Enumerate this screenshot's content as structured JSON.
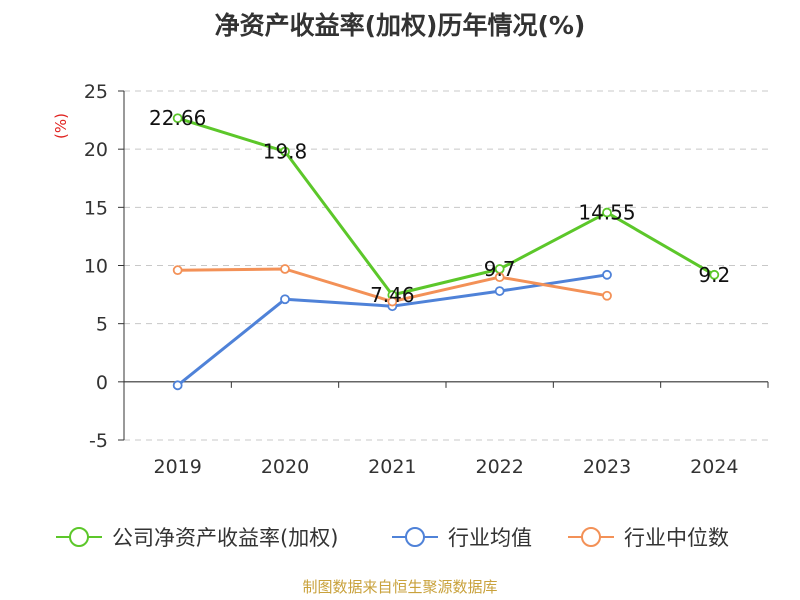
{
  "title": "净资产收益率(加权)历年情况(%)",
  "source": "制图数据来自恒生聚源数据库",
  "chart_data": {
    "type": "line",
    "title": "净资产收益率(加权)历年情况(%)",
    "unit": "(%)",
    "unit_color": "#e0221f",
    "categories": [
      "2019",
      "2020",
      "2021",
      "2022",
      "2023",
      "2024"
    ],
    "ylim": [
      -5,
      25
    ],
    "yticks": [
      -5,
      0,
      5,
      10,
      15,
      20,
      25
    ],
    "grid": true,
    "legend_position": "bottom",
    "series": [
      {
        "name": "公司净资产收益率(加权)",
        "color": "#5cc72a",
        "values": [
          22.66,
          19.8,
          7.46,
          9.7,
          14.55,
          9.2
        ],
        "labels": [
          "22.66",
          "19.8",
          "7.46",
          "9.7",
          "14.55",
          "9.2"
        ]
      },
      {
        "name": "行业均值",
        "color": "#4f82d8",
        "values": [
          -0.3,
          7.1,
          6.5,
          7.8,
          9.2,
          null
        ]
      },
      {
        "name": "行业中位数",
        "color": "#f39157",
        "values": [
          9.6,
          9.7,
          6.9,
          9.0,
          7.4,
          null
        ]
      }
    ]
  }
}
